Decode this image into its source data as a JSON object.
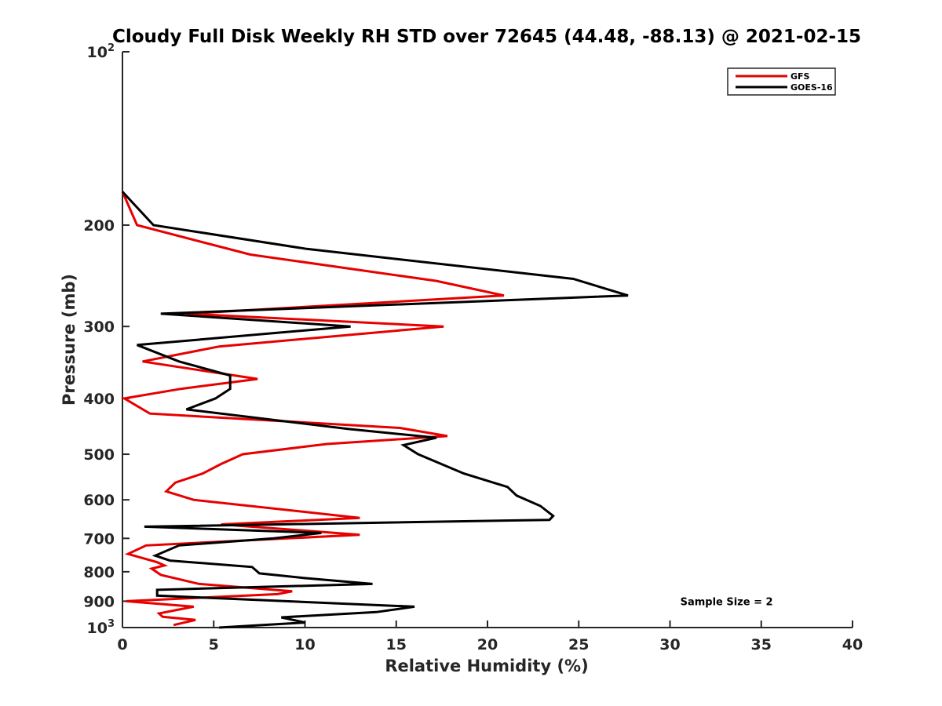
{
  "chart_data": {
    "type": "line",
    "title": "Cloudy Full Disk Weekly RH STD over 72645 (44.48, -88.13) @ 2021-02-15",
    "xlabel": "Relative Humidity (%)",
    "ylabel": "Pressure (mb)",
    "xlim": [
      0,
      40
    ],
    "ylim": [
      100,
      1000
    ],
    "yscale": "log",
    "y_reversed": true,
    "x_ticks": [
      "0",
      "5",
      "10",
      "15",
      "20",
      "25",
      "30",
      "35",
      "40"
    ],
    "y_ticks": [
      {
        "value": 100,
        "base": "10",
        "exp": "2"
      },
      {
        "value": 200,
        "label": "200"
      },
      {
        "value": 300,
        "label": "300"
      },
      {
        "value": 400,
        "label": "400"
      },
      {
        "value": 500,
        "label": "500"
      },
      {
        "value": 600,
        "label": "600"
      },
      {
        "value": 700,
        "label": "700"
      },
      {
        "value": 800,
        "label": "800"
      },
      {
        "value": 900,
        "label": "900"
      },
      {
        "value": 1000,
        "base": "10",
        "exp": "3"
      }
    ],
    "legend_position": "top-right",
    "grid": false,
    "series": [
      {
        "name": "GFS",
        "color": "#e60000",
        "points": [
          [
            0.0,
            175
          ],
          [
            0.8,
            200
          ],
          [
            7.0,
            225
          ],
          [
            17.2,
            250
          ],
          [
            20.9,
            265
          ],
          [
            3.5,
            285
          ],
          [
            17.6,
            300
          ],
          [
            5.3,
            325
          ],
          [
            1.1,
            345
          ],
          [
            7.4,
            370
          ],
          [
            3.2,
            385
          ],
          [
            0.1,
            400
          ],
          [
            1.5,
            425
          ],
          [
            15.2,
            450
          ],
          [
            17.8,
            465
          ],
          [
            11.2,
            480
          ],
          [
            6.6,
            500
          ],
          [
            5.4,
            520
          ],
          [
            4.4,
            540
          ],
          [
            2.9,
            560
          ],
          [
            2.4,
            580
          ],
          [
            3.9,
            600
          ],
          [
            13.0,
            645
          ],
          [
            5.4,
            662
          ],
          [
            13.0,
            690
          ],
          [
            1.3,
            720
          ],
          [
            0.3,
            745
          ],
          [
            1.9,
            770
          ],
          [
            2.3,
            780
          ],
          [
            1.6,
            790
          ],
          [
            2.1,
            810
          ],
          [
            4.2,
            840
          ],
          [
            9.3,
            865
          ],
          [
            8.5,
            875
          ],
          [
            0.2,
            900
          ],
          [
            3.9,
            920
          ],
          [
            2.0,
            945
          ],
          [
            2.2,
            958
          ],
          [
            4.0,
            970
          ],
          [
            2.8,
            990
          ]
        ]
      },
      {
        "name": "GOES-16",
        "color": "#000000",
        "points": [
          [
            0.0,
            175
          ],
          [
            1.7,
            200
          ],
          [
            10.1,
            220
          ],
          [
            24.7,
            248
          ],
          [
            27.7,
            265
          ],
          [
            2.1,
            285
          ],
          [
            12.5,
            300
          ],
          [
            0.8,
            323
          ],
          [
            3.1,
            345
          ],
          [
            5.9,
            365
          ],
          [
            5.9,
            385
          ],
          [
            5.1,
            400
          ],
          [
            3.5,
            418
          ],
          [
            12.4,
            452
          ],
          [
            17.2,
            468
          ],
          [
            15.4,
            482
          ],
          [
            16.2,
            500
          ],
          [
            18.7,
            540
          ],
          [
            21.1,
            570
          ],
          [
            21.6,
            590
          ],
          [
            22.9,
            615
          ],
          [
            23.6,
            640
          ],
          [
            23.4,
            650
          ],
          [
            1.2,
            668
          ],
          [
            10.9,
            685
          ],
          [
            8.3,
            700
          ],
          [
            3.1,
            720
          ],
          [
            1.8,
            750
          ],
          [
            2.6,
            765
          ],
          [
            7.1,
            785
          ],
          [
            7.5,
            805
          ],
          [
            9.9,
            820
          ],
          [
            13.7,
            840
          ],
          [
            1.9,
            860
          ],
          [
            1.9,
            880
          ],
          [
            16.0,
            920
          ],
          [
            13.9,
            940
          ],
          [
            8.7,
            960
          ],
          [
            10.0,
            980
          ],
          [
            5.3,
            1000
          ]
        ]
      }
    ],
    "annotations": [
      {
        "text": "Sample Size = 2",
        "x": 33.1,
        "y": 900
      }
    ]
  }
}
